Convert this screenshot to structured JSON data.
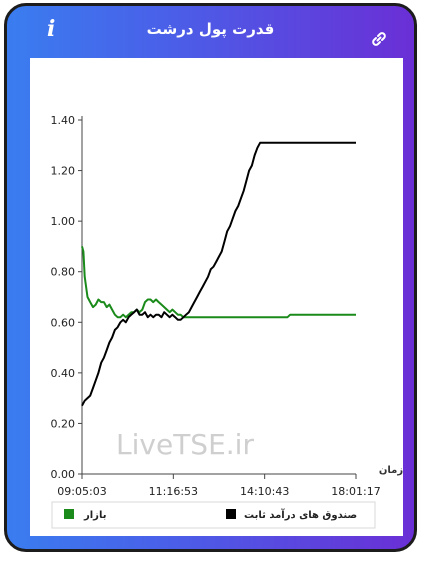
{
  "header": {
    "title": "قدرت پول درشت",
    "info_icon": "info-icon",
    "link_icon": "link-icon"
  },
  "watermark": "LiveTSE.ir",
  "chart_data": {
    "type": "line",
    "xlabel": "زمان",
    "x_ticks": [
      "09:05:03",
      "11:16:53",
      "14:10:43",
      "18:01:17"
    ],
    "y_ticks": [
      "0.00",
      "0.20",
      "0.40",
      "0.60",
      "0.80",
      "1.00",
      "1.20",
      "1.40"
    ],
    "ylim": [
      0,
      1.4
    ],
    "x_range": [
      0,
      100
    ],
    "grid": false,
    "legend_position": "bottom",
    "series": [
      {
        "name": "بازار",
        "color": "#1a8a1a",
        "points": [
          [
            0,
            0.9
          ],
          [
            0.5,
            0.88
          ],
          [
            1,
            0.78
          ],
          [
            2,
            0.7
          ],
          [
            3,
            0.68
          ],
          [
            4,
            0.66
          ],
          [
            5,
            0.67
          ],
          [
            6,
            0.69
          ],
          [
            7,
            0.68
          ],
          [
            8,
            0.68
          ],
          [
            9,
            0.66
          ],
          [
            10,
            0.67
          ],
          [
            11,
            0.65
          ],
          [
            12,
            0.63
          ],
          [
            13,
            0.62
          ],
          [
            14,
            0.62
          ],
          [
            15,
            0.63
          ],
          [
            16,
            0.62
          ],
          [
            17,
            0.63
          ],
          [
            18,
            0.64
          ],
          [
            19,
            0.64
          ],
          [
            20,
            0.65
          ],
          [
            21,
            0.64
          ],
          [
            22,
            0.65
          ],
          [
            23,
            0.68
          ],
          [
            24,
            0.69
          ],
          [
            25,
            0.69
          ],
          [
            26,
            0.68
          ],
          [
            27,
            0.69
          ],
          [
            28,
            0.68
          ],
          [
            29,
            0.67
          ],
          [
            30,
            0.66
          ],
          [
            31,
            0.65
          ],
          [
            32,
            0.64
          ],
          [
            33,
            0.65
          ],
          [
            34,
            0.64
          ],
          [
            35,
            0.63
          ],
          [
            36,
            0.63
          ],
          [
            37,
            0.62
          ],
          [
            38,
            0.62
          ],
          [
            40,
            0.62
          ],
          [
            45,
            0.62
          ],
          [
            50,
            0.62
          ],
          [
            55,
            0.62
          ],
          [
            60,
            0.62
          ],
          [
            65,
            0.62
          ],
          [
            70,
            0.62
          ],
          [
            75,
            0.62
          ],
          [
            76,
            0.63
          ],
          [
            80,
            0.63
          ],
          [
            85,
            0.63
          ],
          [
            90,
            0.63
          ],
          [
            95,
            0.63
          ],
          [
            100,
            0.63
          ]
        ]
      },
      {
        "name": "صندوق های درآمد ثابت",
        "color": "#000000",
        "points": [
          [
            0,
            0.27
          ],
          [
            1,
            0.29
          ],
          [
            2,
            0.3
          ],
          [
            3,
            0.31
          ],
          [
            4,
            0.34
          ],
          [
            5,
            0.37
          ],
          [
            6,
            0.4
          ],
          [
            7,
            0.44
          ],
          [
            8,
            0.46
          ],
          [
            9,
            0.49
          ],
          [
            10,
            0.52
          ],
          [
            11,
            0.54
          ],
          [
            12,
            0.57
          ],
          [
            13,
            0.58
          ],
          [
            14,
            0.6
          ],
          [
            15,
            0.61
          ],
          [
            16,
            0.6
          ],
          [
            17,
            0.62
          ],
          [
            18,
            0.63
          ],
          [
            19,
            0.64
          ],
          [
            20,
            0.65
          ],
          [
            21,
            0.63
          ],
          [
            22,
            0.63
          ],
          [
            23,
            0.64
          ],
          [
            24,
            0.62
          ],
          [
            25,
            0.63
          ],
          [
            26,
            0.62
          ],
          [
            27,
            0.63
          ],
          [
            28,
            0.63
          ],
          [
            29,
            0.62
          ],
          [
            30,
            0.64
          ],
          [
            31,
            0.63
          ],
          [
            32,
            0.62
          ],
          [
            33,
            0.63
          ],
          [
            34,
            0.62
          ],
          [
            35,
            0.61
          ],
          [
            36,
            0.61
          ],
          [
            37,
            0.62
          ],
          [
            38,
            0.63
          ],
          [
            39,
            0.64
          ],
          [
            40,
            0.66
          ],
          [
            41,
            0.68
          ],
          [
            42,
            0.7
          ],
          [
            43,
            0.72
          ],
          [
            44,
            0.74
          ],
          [
            45,
            0.76
          ],
          [
            46,
            0.78
          ],
          [
            47,
            0.81
          ],
          [
            48,
            0.82
          ],
          [
            49,
            0.84
          ],
          [
            50,
            0.86
          ],
          [
            51,
            0.88
          ],
          [
            52,
            0.92
          ],
          [
            53,
            0.96
          ],
          [
            54,
            0.98
          ],
          [
            55,
            1.01
          ],
          [
            56,
            1.04
          ],
          [
            57,
            1.06
          ],
          [
            58,
            1.09
          ],
          [
            59,
            1.12
          ],
          [
            60,
            1.16
          ],
          [
            61,
            1.2
          ],
          [
            62,
            1.22
          ],
          [
            63,
            1.26
          ],
          [
            64,
            1.29
          ],
          [
            65,
            1.31
          ],
          [
            70,
            1.31
          ],
          [
            75,
            1.31
          ],
          [
            80,
            1.31
          ],
          [
            85,
            1.31
          ],
          [
            90,
            1.31
          ],
          [
            95,
            1.31
          ],
          [
            100,
            1.31
          ]
        ]
      }
    ]
  }
}
